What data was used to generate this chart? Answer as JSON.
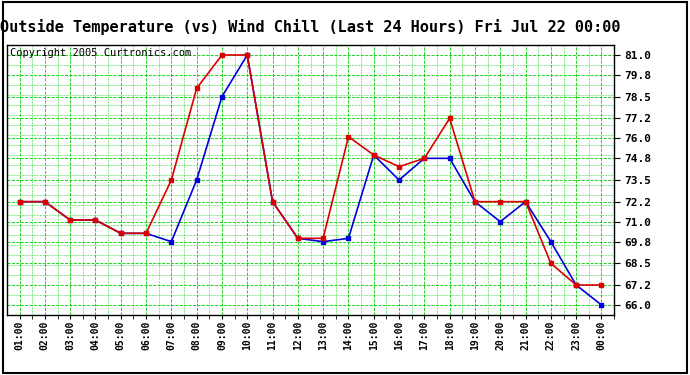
{
  "title": "Outside Temperature (vs) Wind Chill (Last 24 Hours) Fri Jul 22 00:00",
  "copyright": "Copyright 2005 Curtronics.com",
  "x_labels": [
    "01:00",
    "02:00",
    "03:00",
    "04:00",
    "05:00",
    "06:00",
    "07:00",
    "08:00",
    "09:00",
    "10:00",
    "11:00",
    "12:00",
    "13:00",
    "14:00",
    "15:00",
    "16:00",
    "17:00",
    "18:00",
    "19:00",
    "20:00",
    "21:00",
    "22:00",
    "23:00",
    "00:00"
  ],
  "blue_data": [
    72.2,
    72.2,
    71.1,
    71.1,
    70.3,
    70.3,
    69.8,
    73.5,
    78.5,
    81.0,
    72.2,
    70.0,
    69.8,
    70.0,
    75.0,
    73.5,
    74.8,
    74.8,
    72.2,
    71.0,
    72.2,
    69.8,
    67.2,
    66.0
  ],
  "red_data": [
    72.2,
    72.2,
    71.1,
    71.1,
    70.3,
    70.3,
    73.5,
    79.0,
    81.0,
    81.0,
    72.2,
    70.0,
    70.0,
    76.1,
    75.0,
    74.3,
    74.8,
    77.2,
    72.2,
    72.2,
    72.2,
    68.5,
    67.2,
    67.2
  ],
  "ylim": [
    65.4,
    81.6
  ],
  "yticks": [
    66.0,
    67.2,
    68.5,
    69.8,
    71.0,
    72.2,
    73.5,
    74.8,
    76.0,
    77.2,
    78.5,
    79.8,
    81.0
  ],
  "bg_color": "#ffffff",
  "plot_bg": "#ffffff",
  "grid_color": "#00cc00",
  "blue_color": "#0000dd",
  "red_color": "#dd0000",
  "title_fontsize": 11,
  "copyright_fontsize": 7.5
}
